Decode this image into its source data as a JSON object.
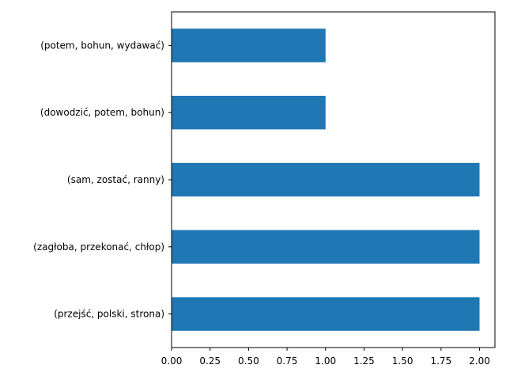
{
  "chart_data": {
    "type": "bar",
    "orientation": "horizontal",
    "categories": [
      "(potem, bohun, wydawać)",
      "(dowodzić, potem, bohun)",
      "(sam, zostać, ranny)",
      "(zagłoba, przekonać, chłop)",
      "(przejść, polski, strona)"
    ],
    "values": [
      1,
      1,
      2,
      2,
      2
    ],
    "xlim": [
      0,
      2.1
    ],
    "xticks": [
      "0.00",
      "0.25",
      "0.50",
      "0.75",
      "1.00",
      "1.25",
      "1.50",
      "1.75",
      "2.00"
    ],
    "title": "",
    "xlabel": "",
    "ylabel": "",
    "grid": false,
    "bar_color": "#1f77b4"
  }
}
